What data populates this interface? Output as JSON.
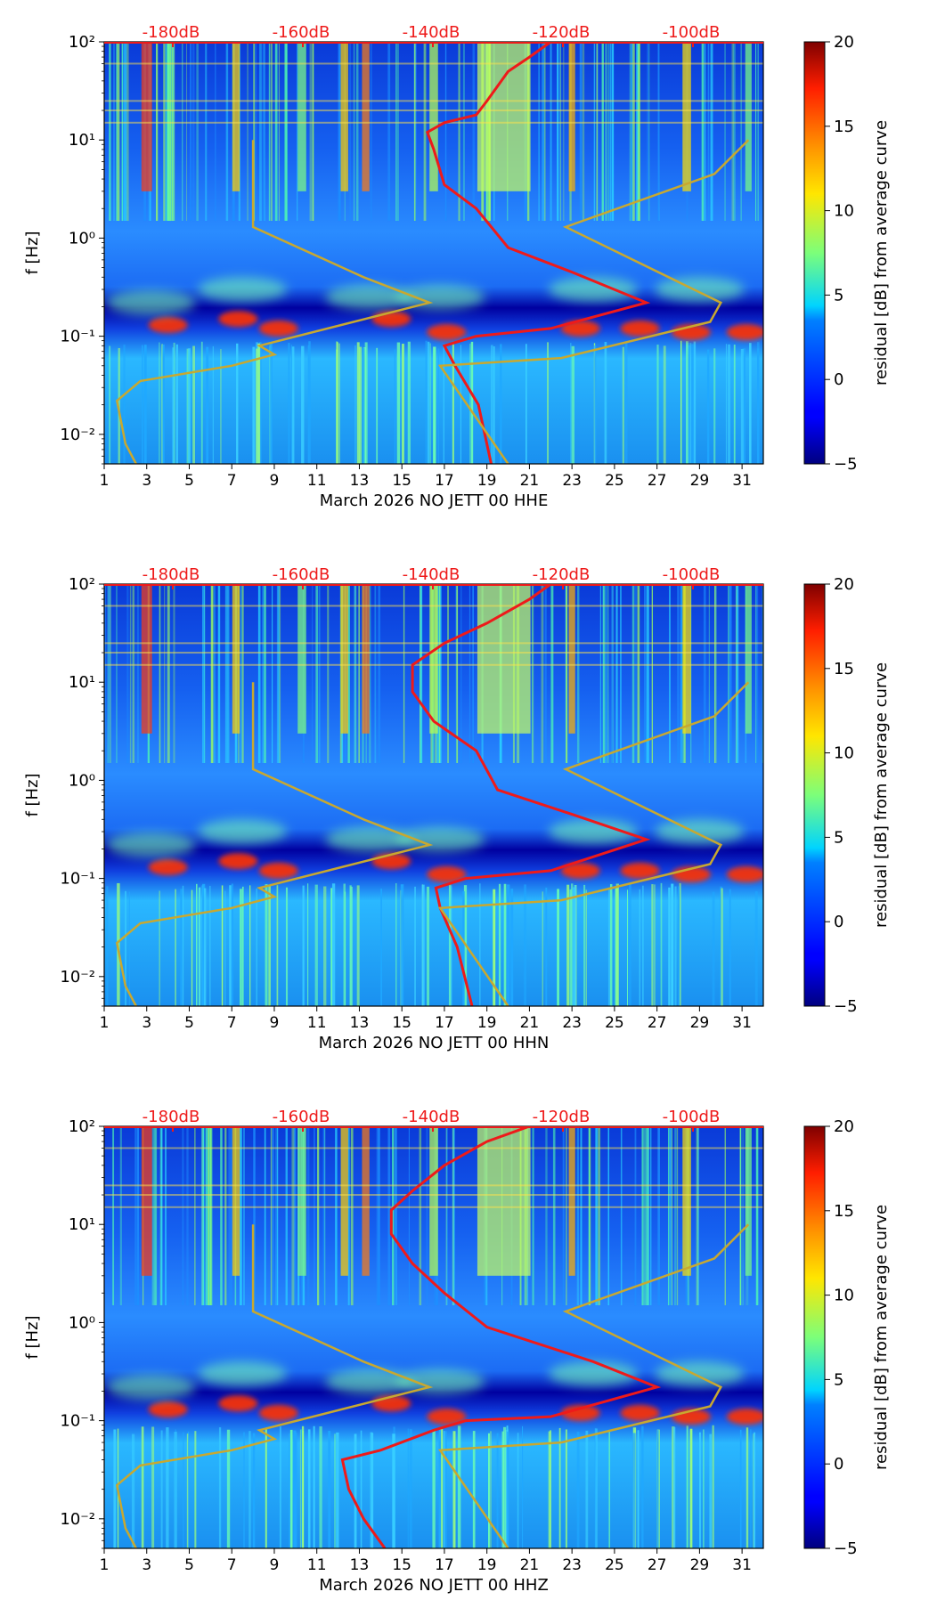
{
  "chart_data": [
    {
      "type": "heatmap",
      "title": "",
      "xlabel": "March 2026 NO JETT 00 HHE",
      "ylabel": "f [Hz]",
      "x_ticks": [
        "1",
        "3",
        "5",
        "7",
        "9",
        "11",
        "13",
        "15",
        "17",
        "19",
        "21",
        "23",
        "25",
        "27",
        "29",
        "31"
      ],
      "x_range": [
        1,
        32
      ],
      "y_range": [
        0.005,
        100
      ],
      "y_scale": "log",
      "y_ticks": [
        {
          "label": "10⁻²",
          "value": 0.01
        },
        {
          "label": "10⁻¹",
          "value": 0.1
        },
        {
          "label": "10⁰",
          "value": 1
        },
        {
          "label": "10¹",
          "value": 10
        },
        {
          "label": "10²",
          "value": 100
        }
      ],
      "top_axis_labels": [
        "-180dB",
        "-160dB",
        "-140dB",
        "-120dB",
        "-100dB"
      ],
      "colorbar": {
        "label": "residual [dB] from average curve",
        "ticks": [
          "−5",
          "0",
          "5",
          "10",
          "15",
          "20"
        ],
        "range": [
          -5,
          20
        ]
      },
      "series": [
        {
          "name": "average PSD",
          "color": "#ee1a1a",
          "points": [
            [
              19.2,
              0.005
            ],
            [
              18.6,
              0.02
            ],
            [
              17.5,
              0.05
            ],
            [
              17.0,
              0.08
            ],
            [
              18.5,
              0.1
            ],
            [
              22,
              0.12
            ],
            [
              26.5,
              0.22
            ],
            [
              23,
              0.45
            ],
            [
              20,
              0.8
            ],
            [
              18.5,
              2
            ],
            [
              17,
              3.5
            ],
            [
              16.5,
              8
            ],
            [
              16.2,
              12
            ],
            [
              17,
              15
            ],
            [
              18.5,
              18
            ],
            [
              19,
              25
            ],
            [
              20,
              50
            ],
            [
              21,
              70
            ],
            [
              22,
              100
            ]
          ]
        },
        {
          "name": "noise model",
          "color": "#c8a830",
          "points": [
            [
              2.5,
              0.005
            ],
            [
              2.0,
              0.008
            ],
            [
              1.6,
              0.022
            ],
            [
              2.7,
              0.035
            ],
            [
              7,
              0.05
            ],
            [
              9,
              0.065
            ],
            [
              8.3,
              0.08
            ],
            [
              16.3,
              0.22
            ],
            [
              13.2,
              0.4
            ],
            [
              8,
              1.3
            ],
            [
              8,
              10
            ],
            [
              20,
              0.005
            ],
            [
              16.8,
              0.05
            ],
            [
              22.5,
              0.06
            ],
            [
              29.5,
              0.14
            ],
            [
              30,
              0.22
            ],
            [
              22.7,
              1.3
            ],
            [
              29.7,
              4.5
            ],
            [
              31.3,
              10
            ]
          ]
        }
      ]
    },
    {
      "type": "heatmap",
      "title": "",
      "xlabel": "March 2026 NO JETT 00 HHN",
      "ylabel": "f [Hz]",
      "x_ticks": [
        "1",
        "3",
        "5",
        "7",
        "9",
        "11",
        "13",
        "15",
        "17",
        "19",
        "21",
        "23",
        "25",
        "27",
        "29",
        "31"
      ],
      "x_range": [
        1,
        32
      ],
      "y_range": [
        0.005,
        100
      ],
      "y_scale": "log",
      "y_ticks": [
        {
          "label": "10⁻²",
          "value": 0.01
        },
        {
          "label": "10⁻¹",
          "value": 0.1
        },
        {
          "label": "10⁰",
          "value": 1
        },
        {
          "label": "10¹",
          "value": 10
        },
        {
          "label": "10²",
          "value": 100
        }
      ],
      "top_axis_labels": [
        "-180dB",
        "-160dB",
        "-140dB",
        "-120dB",
        "-100dB"
      ],
      "colorbar": {
        "label": "residual [dB] from average curve",
        "ticks": [
          "−5",
          "0",
          "5",
          "10",
          "15",
          "20"
        ],
        "range": [
          -5,
          20
        ]
      },
      "series": [
        {
          "name": "average PSD",
          "color": "#ee1a1a",
          "points": [
            [
              18.3,
              0.005
            ],
            [
              17.6,
              0.02
            ],
            [
              16.8,
              0.05
            ],
            [
              16.6,
              0.08
            ],
            [
              18,
              0.1
            ],
            [
              22,
              0.12
            ],
            [
              26.5,
              0.25
            ],
            [
              23,
              0.45
            ],
            [
              19.5,
              0.8
            ],
            [
              18.5,
              2
            ],
            [
              16.5,
              4
            ],
            [
              15.5,
              8
            ],
            [
              15.5,
              15
            ],
            [
              17,
              25
            ],
            [
              19,
              40
            ],
            [
              21,
              70
            ],
            [
              22,
              100
            ]
          ]
        },
        {
          "name": "noise model",
          "color": "#c8a830",
          "points": [
            [
              2.5,
              0.005
            ],
            [
              2.0,
              0.008
            ],
            [
              1.6,
              0.022
            ],
            [
              2.7,
              0.035
            ],
            [
              7,
              0.05
            ],
            [
              9,
              0.065
            ],
            [
              8.3,
              0.08
            ],
            [
              16.3,
              0.22
            ],
            [
              13.2,
              0.4
            ],
            [
              8,
              1.3
            ],
            [
              8,
              10
            ],
            [
              20,
              0.005
            ],
            [
              16.8,
              0.05
            ],
            [
              22.5,
              0.06
            ],
            [
              29.5,
              0.14
            ],
            [
              30,
              0.22
            ],
            [
              22.7,
              1.3
            ],
            [
              29.7,
              4.5
            ],
            [
              31.3,
              10
            ]
          ]
        }
      ]
    },
    {
      "type": "heatmap",
      "title": "",
      "xlabel": "March 2026 NO JETT 00 HHZ",
      "ylabel": "f [Hz]",
      "x_ticks": [
        "1",
        "3",
        "5",
        "7",
        "9",
        "11",
        "13",
        "15",
        "17",
        "19",
        "21",
        "23",
        "25",
        "27",
        "29",
        "31"
      ],
      "x_range": [
        1,
        32
      ],
      "y_range": [
        0.005,
        100
      ],
      "y_scale": "log",
      "y_ticks": [
        {
          "label": "10⁻²",
          "value": 0.01
        },
        {
          "label": "10⁻¹",
          "value": 0.1
        },
        {
          "label": "10⁰",
          "value": 1
        },
        {
          "label": "10¹",
          "value": 10
        },
        {
          "label": "10²",
          "value": 100
        }
      ],
      "top_axis_labels": [
        "-180dB",
        "-160dB",
        "-140dB",
        "-120dB",
        "-100dB"
      ],
      "colorbar": {
        "label": "residual [dB] from average curve",
        "ticks": [
          "−5",
          "0",
          "5",
          "10",
          "15",
          "20"
        ],
        "range": [
          -5,
          20
        ]
      },
      "series": [
        {
          "name": "average PSD",
          "color": "#ee1a1a",
          "points": [
            [
              14.2,
              0.005
            ],
            [
              13.2,
              0.01
            ],
            [
              12.5,
              0.02
            ],
            [
              12.2,
              0.04
            ],
            [
              14,
              0.05
            ],
            [
              16.5,
              0.08
            ],
            [
              18,
              0.1
            ],
            [
              22,
              0.11
            ],
            [
              27,
              0.22
            ],
            [
              24,
              0.4
            ],
            [
              19,
              0.9
            ],
            [
              17,
              2
            ],
            [
              15.5,
              4
            ],
            [
              14.5,
              8
            ],
            [
              14.5,
              14
            ],
            [
              15.5,
              22
            ],
            [
              17,
              40
            ],
            [
              19,
              70
            ],
            [
              21,
              100
            ]
          ]
        },
        {
          "name": "noise model",
          "color": "#c8a830",
          "points": [
            [
              2.5,
              0.005
            ],
            [
              2.0,
              0.008
            ],
            [
              1.6,
              0.022
            ],
            [
              2.7,
              0.035
            ],
            [
              7,
              0.05
            ],
            [
              9,
              0.065
            ],
            [
              8.3,
              0.08
            ],
            [
              16.3,
              0.22
            ],
            [
              13.2,
              0.4
            ],
            [
              8,
              1.3
            ],
            [
              8,
              10
            ],
            [
              20,
              0.005
            ],
            [
              16.8,
              0.05
            ],
            [
              22.5,
              0.06
            ],
            [
              29.5,
              0.14
            ],
            [
              30,
              0.22
            ],
            [
              22.7,
              1.3
            ],
            [
              29.7,
              4.5
            ],
            [
              31.3,
              10
            ]
          ]
        }
      ]
    }
  ]
}
